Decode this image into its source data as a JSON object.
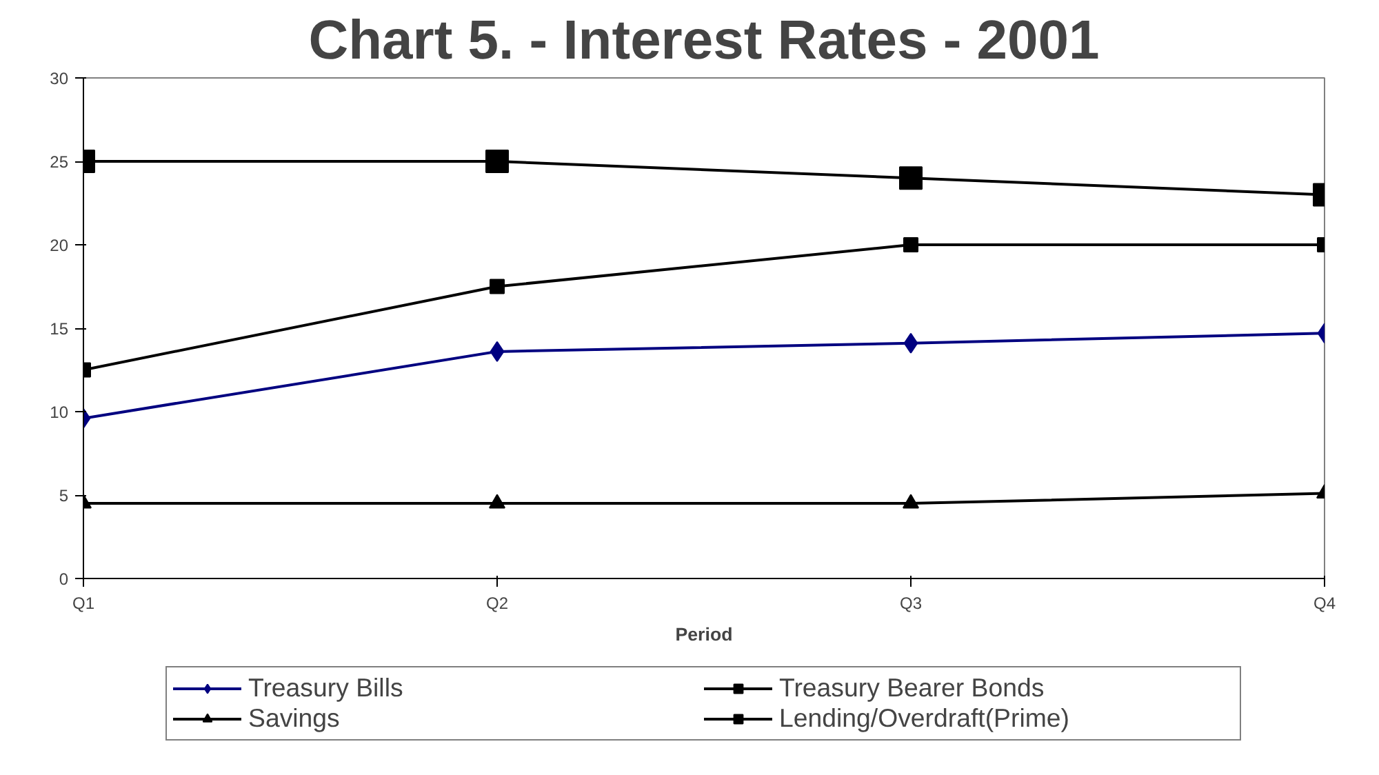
{
  "chart_data": {
    "type": "line",
    "title": "Chart 5. - Interest Rates - 2001",
    "xlabel": "Period",
    "categories": [
      "Q1",
      "Q2",
      "Q3",
      "Q4"
    ],
    "series": [
      {
        "name": "Treasury Bills",
        "color": "#000080",
        "marker": "diamond",
        "values": [
          9.6,
          13.6,
          14.1,
          14.7
        ]
      },
      {
        "name": "Treasury Bearer Bonds",
        "color": "#000000",
        "marker": "square",
        "values": [
          12.5,
          17.5,
          20,
          20
        ]
      },
      {
        "name": "Savings",
        "color": "#000000",
        "marker": "triangle",
        "values": [
          4.5,
          4.5,
          4.5,
          5.1
        ]
      },
      {
        "name": "Lending/Overdraft(Prime)",
        "color": "#000000",
        "marker": "square",
        "values": [
          25,
          25,
          24,
          23
        ]
      }
    ],
    "ylim": [
      0,
      30
    ],
    "yticks": [
      0,
      5,
      10,
      15,
      20,
      25,
      30
    ],
    "grid": false,
    "legend": "bottom"
  }
}
